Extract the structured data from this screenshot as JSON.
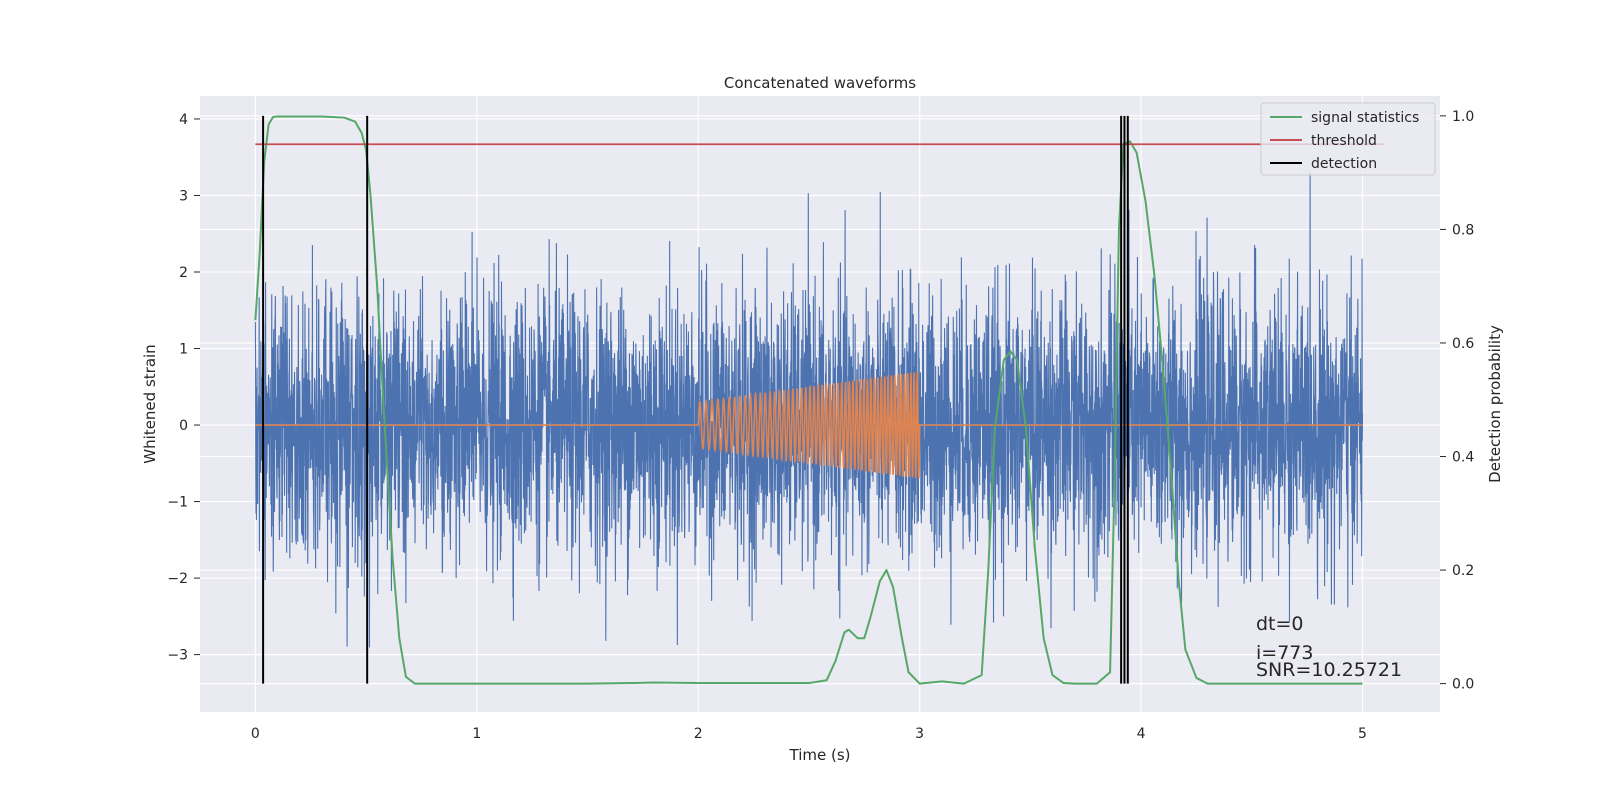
{
  "chart_data": {
    "type": "line",
    "title": "Concatenated waveforms",
    "xlabel": "Time (s)",
    "ylabel_left": "Whitened strain",
    "ylabel_right": "Detection probability",
    "xlim": [
      -0.25,
      5.35
    ],
    "ylim_left": [
      -3.75,
      4.3
    ],
    "ylim_right": [
      -0.05,
      1.035
    ],
    "xticks": [
      0,
      1,
      2,
      3,
      4,
      5
    ],
    "yticks_left": [
      -3,
      -2,
      -1,
      0,
      1,
      2,
      3,
      4
    ],
    "yticks_right": [
      0.0,
      0.2,
      0.4,
      0.6,
      0.8,
      1.0
    ],
    "grid": true,
    "legend_position": "top-right",
    "colors": {
      "background": "#eaeaf2",
      "grid": "#ffffff",
      "strain": "#4c72b0",
      "injected_waveform": "#dd8452",
      "signal_statistics": "#55a868",
      "threshold": "#c44e52",
      "detection": "#000000"
    },
    "strain_noise": {
      "x_range": [
        0,
        5
      ],
      "typical_envelope": [
        -1.8,
        2.3
      ],
      "extremes": [
        -3.4,
        3.3
      ]
    },
    "injected_waveform": {
      "start": 2.0,
      "end": 3.0,
      "amplitude_start": 0.3,
      "amplitude_end": 0.7,
      "baseline": 0
    },
    "series": [
      {
        "name": "signal statistics",
        "axis": "right",
        "x": [
          0.0,
          0.02,
          0.04,
          0.06,
          0.08,
          0.1,
          0.2,
          0.3,
          0.4,
          0.45,
          0.48,
          0.5,
          0.52,
          0.55,
          0.58,
          0.62,
          0.65,
          0.68,
          0.72,
          1.0,
          1.5,
          1.7,
          1.8,
          2.0,
          2.5,
          2.58,
          2.62,
          2.66,
          2.68,
          2.72,
          2.75,
          2.78,
          2.82,
          2.85,
          2.88,
          2.92,
          2.95,
          3.0,
          3.1,
          3.2,
          3.28,
          3.31,
          3.34,
          3.38,
          3.41,
          3.44,
          3.48,
          3.52,
          3.56,
          3.6,
          3.65,
          3.7,
          3.8,
          3.86,
          3.88,
          3.9,
          3.92,
          3.95,
          3.98,
          4.02,
          4.06,
          4.1,
          4.14,
          4.17,
          4.2,
          4.25,
          4.3,
          4.5,
          5.0
        ],
        "y": [
          0.64,
          0.76,
          0.92,
          0.985,
          0.998,
          0.999,
          0.999,
          0.999,
          0.997,
          0.99,
          0.97,
          0.94,
          0.86,
          0.7,
          0.48,
          0.22,
          0.08,
          0.012,
          0.0,
          0.0,
          0.0,
          0.001,
          0.002,
          0.001,
          0.001,
          0.006,
          0.04,
          0.09,
          0.095,
          0.08,
          0.08,
          0.12,
          0.18,
          0.2,
          0.17,
          0.08,
          0.02,
          0.0,
          0.004,
          0.0,
          0.015,
          0.2,
          0.45,
          0.57,
          0.585,
          0.57,
          0.45,
          0.24,
          0.08,
          0.015,
          0.001,
          0.0,
          0.0,
          0.02,
          0.35,
          0.8,
          0.95,
          0.955,
          0.935,
          0.85,
          0.72,
          0.55,
          0.35,
          0.18,
          0.06,
          0.01,
          0.0,
          0.0,
          0.0
        ]
      },
      {
        "name": "threshold",
        "axis": "right",
        "x": [
          0,
          5.1
        ],
        "y": [
          0.95,
          0.95
        ]
      },
      {
        "name": "detection",
        "axis": "right",
        "vlines_x": [
          0.035,
          0.505,
          3.91,
          3.925,
          3.94
        ],
        "y_range": [
          0.0,
          1.0
        ]
      }
    ],
    "annotations": [
      "dt=0",
      "i=773",
      "SNR=10.25721"
    ]
  }
}
